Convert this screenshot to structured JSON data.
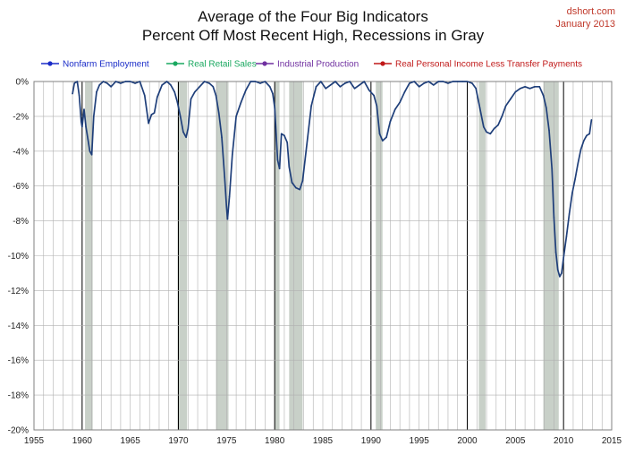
{
  "header": {
    "title_line1": "Average of the Four Big Indicators",
    "title_line2": "Percent Off Most Recent High, Recessions in Gray",
    "source": "dshort.com",
    "date": "January 2013"
  },
  "colors": {
    "line": "#1f3f7a",
    "recession": "#c8d0c8",
    "grid": "#b0b0b0",
    "decade": "#000000",
    "credit": "#c0392b"
  },
  "chart_data": {
    "type": "line",
    "title": "Average of the Four Big Indicators — Percent Off Most Recent High, Recessions in Gray",
    "xlabel": "",
    "ylabel": "",
    "xlim": [
      1955,
      2015
    ],
    "ylim": [
      -20,
      0
    ],
    "x_ticks": [
      1955,
      1960,
      1965,
      1970,
      1975,
      1980,
      1985,
      1990,
      1995,
      2000,
      2005,
      2010,
      2015
    ],
    "y_ticks": [
      0,
      -2,
      -4,
      -6,
      -8,
      -10,
      -12,
      -14,
      -16,
      -18,
      -20
    ],
    "y_tick_labels": [
      "0%",
      "-2%",
      "-4%",
      "-6%",
      "-8%",
      "-10%",
      "-12%",
      "-14%",
      "-16%",
      "-18%",
      "-20%"
    ],
    "grid": true,
    "legend_position": "top",
    "legend": [
      {
        "name": "Nonfarm Employment",
        "color": "#1a2cc8"
      },
      {
        "name": "Real Retail Sales",
        "color": "#1aa860"
      },
      {
        "name": "Industrial Production",
        "color": "#7030a0"
      },
      {
        "name": "Real Personal Income Less Transfer Payments",
        "color": "#c01818"
      }
    ],
    "recessions": [
      [
        1960.3,
        1961.1
      ],
      [
        1969.9,
        1970.9
      ],
      [
        1973.9,
        1975.2
      ],
      [
        1980.0,
        1980.5
      ],
      [
        1981.5,
        1982.9
      ],
      [
        1990.5,
        1991.2
      ],
      [
        2001.2,
        2001.9
      ],
      [
        2007.9,
        2009.5
      ]
    ],
    "series": [
      {
        "name": "Average of the Four Big Indicators",
        "x": [
          1959.0,
          1959.2,
          1959.5,
          1959.7,
          1959.9,
          1960.0,
          1960.2,
          1960.4,
          1960.6,
          1960.8,
          1961.0,
          1961.2,
          1961.5,
          1961.8,
          1962.2,
          1962.6,
          1963.0,
          1963.5,
          1964.0,
          1964.5,
          1965.0,
          1965.5,
          1966.0,
          1966.5,
          1966.9,
          1967.2,
          1967.5,
          1967.8,
          1968.3,
          1968.8,
          1969.2,
          1969.6,
          1969.9,
          1970.2,
          1970.5,
          1970.8,
          1971.0,
          1971.3,
          1971.7,
          1972.2,
          1972.7,
          1973.2,
          1973.6,
          1973.9,
          1974.2,
          1974.5,
          1974.8,
          1975.0,
          1975.1,
          1975.3,
          1975.6,
          1976.0,
          1976.5,
          1977.0,
          1977.5,
          1978.0,
          1978.5,
          1979.0,
          1979.5,
          1979.8,
          1980.0,
          1980.3,
          1980.5,
          1980.7,
          1981.0,
          1981.3,
          1981.5,
          1981.8,
          1982.2,
          1982.6,
          1982.9,
          1983.3,
          1983.8,
          1984.3,
          1984.8,
          1985.3,
          1985.8,
          1986.3,
          1986.8,
          1987.3,
          1987.8,
          1988.3,
          1988.8,
          1989.3,
          1989.8,
          1990.3,
          1990.6,
          1990.9,
          1991.2,
          1991.6,
          1992.0,
          1992.5,
          1993.0,
          1993.5,
          1994.0,
          1994.5,
          1995.0,
          1995.5,
          1996.0,
          1996.5,
          1997.0,
          1997.5,
          1998.0,
          1998.5,
          1999.0,
          1999.5,
          2000.0,
          2000.5,
          2000.9,
          2001.3,
          2001.7,
          2002.0,
          2002.4,
          2002.8,
          2003.2,
          2003.6,
          2004.0,
          2004.5,
          2005.0,
          2005.5,
          2006.0,
          2006.5,
          2007.0,
          2007.5,
          2007.9,
          2008.2,
          2008.5,
          2008.8,
          2009.0,
          2009.2,
          2009.4,
          2009.6,
          2009.8,
          2010.0,
          2010.3,
          2010.6,
          2010.9,
          2011.2,
          2011.5,
          2011.8,
          2012.1,
          2012.4,
          2012.7,
          2012.9
        ],
        "values": [
          -0.7,
          -0.1,
          0.0,
          -0.8,
          -2.3,
          -2.6,
          -1.6,
          -2.6,
          -3.3,
          -4.0,
          -4.2,
          -2.0,
          -0.6,
          -0.2,
          0.0,
          -0.1,
          -0.3,
          0.0,
          -0.1,
          0.0,
          0.0,
          -0.1,
          0.0,
          -0.8,
          -2.4,
          -1.9,
          -1.8,
          -0.9,
          -0.2,
          0.0,
          -0.2,
          -0.6,
          -1.2,
          -2.0,
          -2.9,
          -3.2,
          -2.7,
          -1.0,
          -0.6,
          -0.3,
          0.0,
          -0.1,
          -0.3,
          -0.8,
          -1.8,
          -3.2,
          -5.5,
          -7.2,
          -7.9,
          -6.6,
          -4.2,
          -2.0,
          -1.2,
          -0.5,
          0.0,
          0.0,
          -0.1,
          0.0,
          -0.3,
          -0.7,
          -1.5,
          -4.5,
          -5.0,
          -3.0,
          -3.1,
          -3.5,
          -4.9,
          -5.8,
          -6.1,
          -6.2,
          -5.7,
          -3.8,
          -1.4,
          -0.3,
          0.0,
          -0.4,
          -0.2,
          0.0,
          -0.3,
          -0.1,
          0.0,
          -0.4,
          -0.2,
          0.0,
          -0.5,
          -0.8,
          -1.4,
          -3.0,
          -3.4,
          -3.2,
          -2.3,
          -1.6,
          -1.2,
          -0.6,
          -0.1,
          0.0,
          -0.3,
          -0.1,
          0.0,
          -0.2,
          0.0,
          0.0,
          -0.1,
          0.0,
          0.0,
          0.0,
          0.0,
          -0.1,
          -0.4,
          -1.5,
          -2.6,
          -2.9,
          -3.0,
          -2.7,
          -2.5,
          -2.0,
          -1.4,
          -1.0,
          -0.6,
          -0.4,
          -0.3,
          -0.4,
          -0.3,
          -0.3,
          -0.8,
          -1.5,
          -2.8,
          -5.0,
          -7.8,
          -9.8,
          -10.8,
          -11.2,
          -11.0,
          -10.1,
          -8.9,
          -7.6,
          -6.4,
          -5.6,
          -4.7,
          -3.9,
          -3.4,
          -3.1,
          -3.0,
          -2.2
        ]
      }
    ]
  }
}
